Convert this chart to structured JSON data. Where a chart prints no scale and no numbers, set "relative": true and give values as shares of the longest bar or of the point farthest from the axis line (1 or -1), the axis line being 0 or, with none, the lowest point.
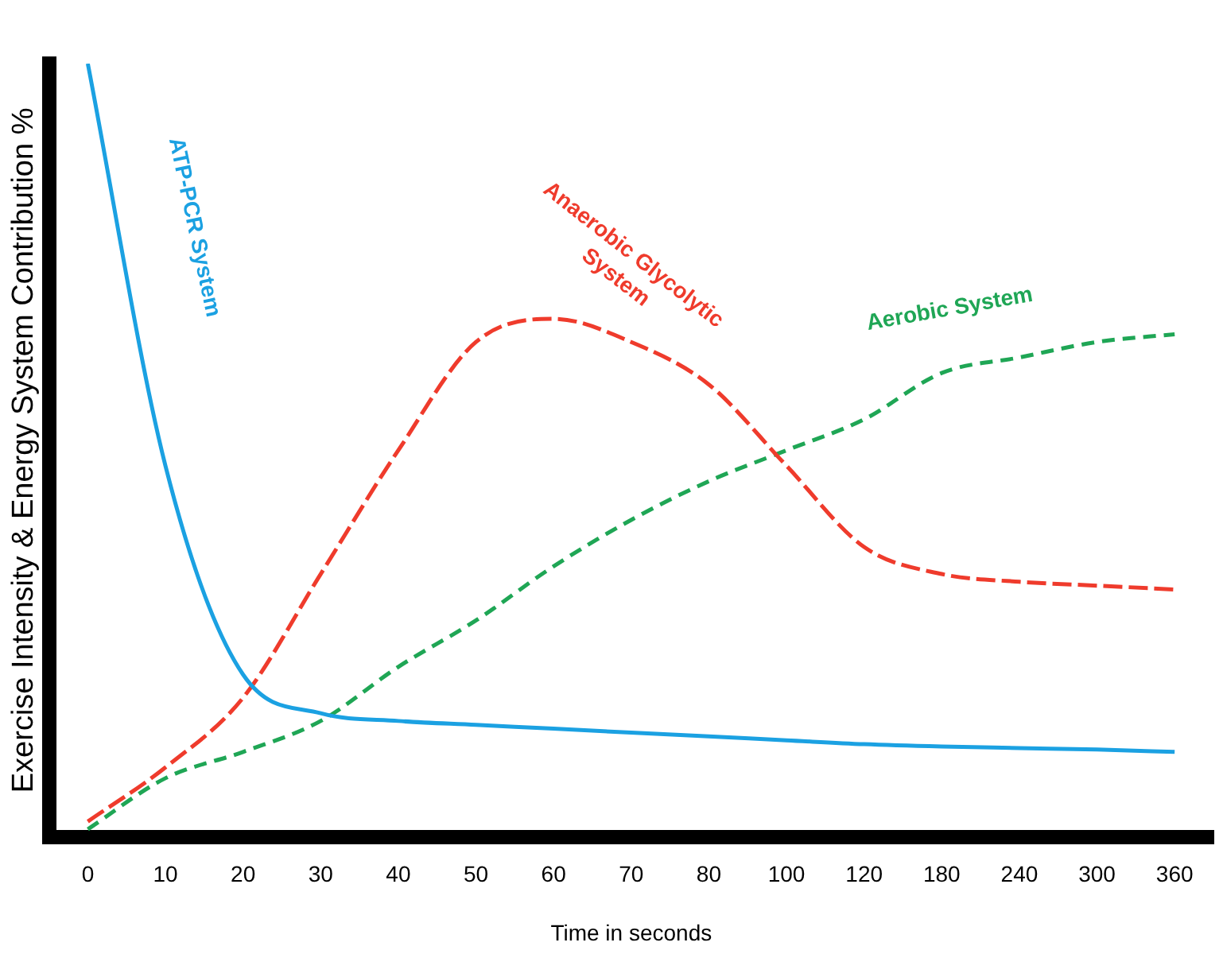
{
  "chart_data": {
    "type": "line",
    "relative": true,
    "xlabel": "Time in seconds",
    "ylabel": "Exercise Intensity & Energy System Contribution %",
    "categories": [
      "0",
      "10",
      "20",
      "30",
      "40",
      "50",
      "60",
      "70",
      "80",
      "100",
      "120",
      "180",
      "240",
      "300",
      "360"
    ],
    "series": [
      {
        "name": "ATP-PCR System",
        "color": "#1ba1e2",
        "line_style": "solid",
        "values": [
          1,
          0.48,
          0.21,
          0.16,
          0.15,
          0.145,
          0.14,
          0.135,
          0.13,
          0.125,
          0.12,
          0.117,
          0.115,
          0.113,
          0.11
        ]
      },
      {
        "name": "Anaerobic Glycolytic System",
        "color": "#ef3b2c",
        "line_style": "dashed",
        "values": [
          0.02,
          0.09,
          0.18,
          0.34,
          0.5,
          0.64,
          0.67,
          0.64,
          0.585,
          0.48,
          0.375,
          0.34,
          0.33,
          0.325,
          0.32
        ]
      },
      {
        "name": "Aerobic System",
        "color": "#1fa655",
        "line_style": "dotted",
        "values": [
          0.01,
          0.076,
          0.11,
          0.15,
          0.22,
          0.28,
          0.35,
          0.41,
          0.46,
          0.5,
          0.54,
          0.6,
          0.62,
          0.64,
          0.65
        ]
      }
    ],
    "grid": false,
    "legend": false,
    "marker": "none"
  }
}
